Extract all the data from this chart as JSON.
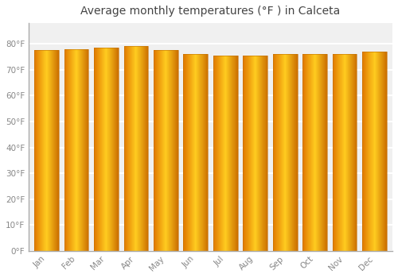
{
  "title": "Average monthly temperatures (°F ) in Calceta",
  "months": [
    "Jan",
    "Feb",
    "Mar",
    "Apr",
    "May",
    "Jun",
    "Jul",
    "Aug",
    "Sep",
    "Oct",
    "Nov",
    "Dec"
  ],
  "values": [
    77.5,
    78.0,
    78.5,
    79.0,
    77.5,
    76.0,
    75.5,
    75.5,
    76.0,
    76.0,
    76.0,
    77.0
  ],
  "bar_color_left": "#F0820A",
  "bar_color_center": "#FFCC33",
  "bar_color_right": "#E87800",
  "edge_color": "#C07000",
  "background_color": "#ffffff",
  "plot_bg_color": "#f0f0f0",
  "grid_color": "#ffffff",
  "tick_label_color": "#888888",
  "title_color": "#444444",
  "ylim": [
    0,
    88
  ],
  "yticks": [
    0,
    10,
    20,
    30,
    40,
    50,
    60,
    70,
    80
  ],
  "ytick_labels": [
    "0°F",
    "10°F",
    "20°F",
    "30°F",
    "40°F",
    "50°F",
    "60°F",
    "70°F",
    "80°F"
  ],
  "title_fontsize": 10,
  "tick_fontsize": 7.5
}
